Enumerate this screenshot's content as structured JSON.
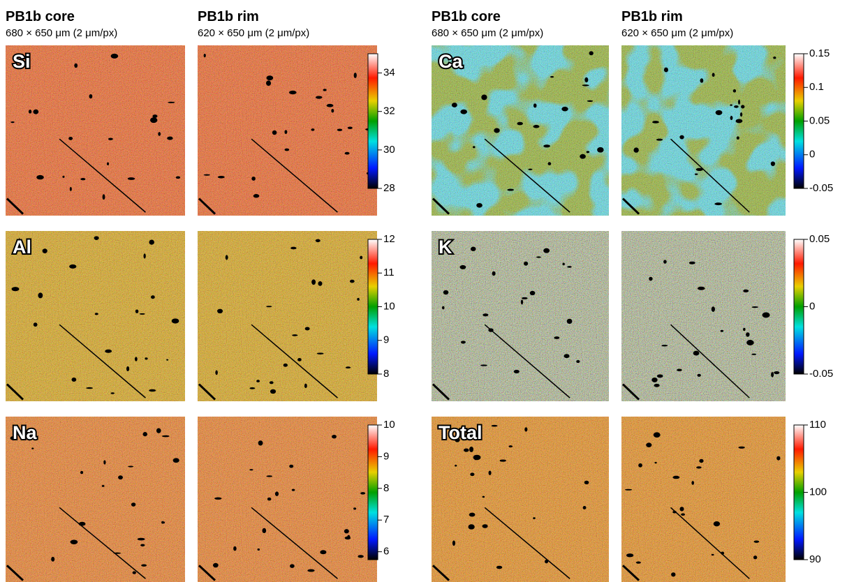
{
  "columns": [
    {
      "title": "PB1b core",
      "subtitle": "680 × 650 μm (2 μm/px)"
    },
    {
      "title": "PB1b rim",
      "subtitle": "620 × 650 μm (2 μm/px)"
    },
    {
      "title": "PB1b core",
      "subtitle": "680 × 650 μm (2 μm/px)"
    },
    {
      "title": "PB1b rim",
      "subtitle": "620 × 650 μm (2 μm/px)"
    }
  ],
  "panels": [
    {
      "label": "Si",
      "colorbar": {
        "range": [
          28,
          35
        ],
        "ticks": [
          28,
          30,
          32,
          34
        ]
      }
    },
    {
      "label": "Al",
      "colorbar": {
        "range": [
          8,
          12
        ],
        "ticks": [
          8,
          9,
          10,
          11,
          12
        ]
      }
    },
    {
      "label": "Na",
      "colorbar": {
        "range": [
          5.75,
          10
        ],
        "ticks": [
          6,
          7,
          8,
          9,
          10
        ]
      }
    },
    {
      "label": "Ca",
      "colorbar": {
        "range": [
          -0.05,
          0.15
        ],
        "ticks": [
          -0.05,
          0,
          0.05,
          0.1,
          0.15
        ]
      }
    },
    {
      "label": "K",
      "colorbar": {
        "range": [
          -0.05,
          0.05
        ],
        "ticks": [
          -0.05,
          0,
          0.05
        ]
      }
    },
    {
      "label": "Total",
      "colorbar": {
        "range": [
          90,
          110
        ],
        "ticks": [
          90,
          100,
          110
        ]
      }
    }
  ]
}
